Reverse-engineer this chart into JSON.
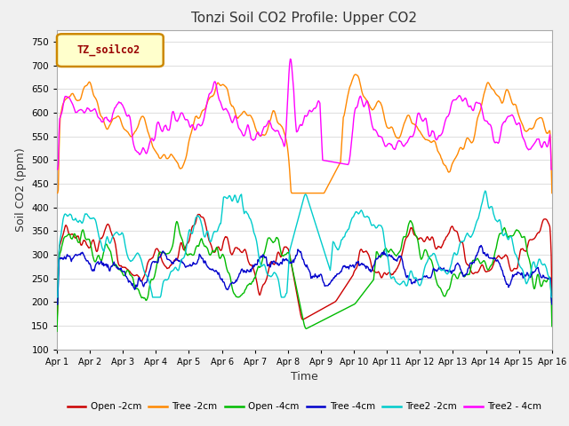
{
  "title": "Tonzi Soil CO2 Profile: Upper CO2",
  "xlabel": "Time",
  "ylabel": "Soil CO2 (ppm)",
  "legend_label": "TZ_soilco2",
  "ylim": [
    100,
    775
  ],
  "yticks": [
    100,
    150,
    200,
    250,
    300,
    350,
    400,
    450,
    500,
    550,
    600,
    650,
    700,
    750
  ],
  "xtick_labels": [
    "Apr 1",
    "Apr 2",
    "Apr 3",
    "Apr 4",
    "Apr 5",
    "Apr 6",
    "Apr 7",
    "Apr 8",
    "Apr 9",
    "Apr 10",
    "Apr 11",
    "Apr 12",
    "Apr 13",
    "Apr 14",
    "Apr 15",
    "Apr 16"
  ],
  "series": {
    "Open -2cm": {
      "color": "#cc0000",
      "lw": 1.0
    },
    "Tree -2cm": {
      "color": "#ff8800",
      "lw": 1.0
    },
    "Open -4cm": {
      "color": "#00bb00",
      "lw": 1.0
    },
    "Tree -4cm": {
      "color": "#0000cc",
      "lw": 1.0
    },
    "Tree2 -2cm": {
      "color": "#00cccc",
      "lw": 1.0
    },
    "Tree2 - 4cm": {
      "color": "#ff00ff",
      "lw": 1.0
    }
  },
  "fig_bg": "#f0f0f0",
  "plot_bg": "#ffffff",
  "grid_color": "#e0e0e0"
}
